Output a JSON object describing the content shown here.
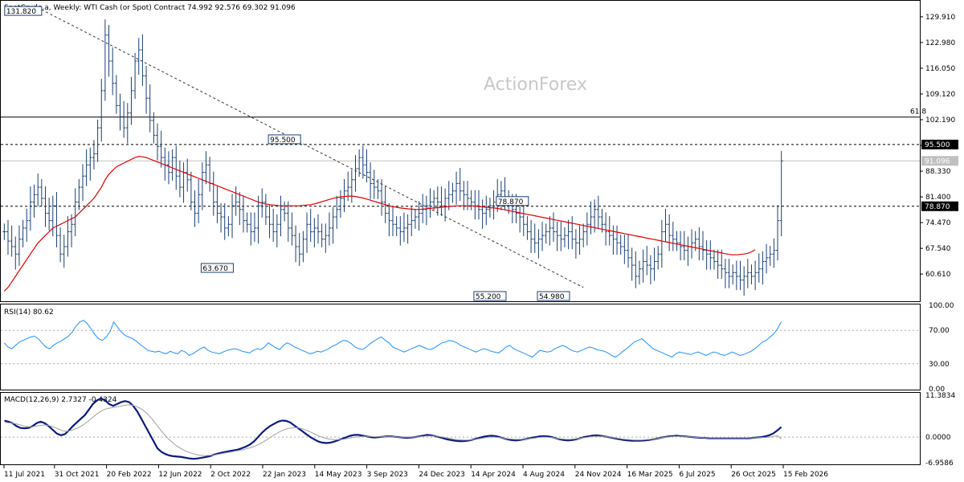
{
  "header": {
    "title": "SpotCrude.a, Weekly:  WTI Cash (or Spot) Contract  74.992 92.576 69.302 91.096",
    "watermark": "ActionForex"
  },
  "colors": {
    "candle": "#1a3f73",
    "ma": "#e00000",
    "rsi": "#1e90ff",
    "macd_main": "#0a1a80",
    "macd_signal": "#a0a0a0",
    "dash": "#333333",
    "grid": "#bdbdbd"
  },
  "chart_data": [
    {
      "type": "candlestick",
      "title": "SpotCrude.a, Weekly:  WTI Cash (or Spot) Contract  74.992 92.576 69.302 91.096",
      "ylim": [
        53.5,
        134.0
      ],
      "yticks": [
        "129.910",
        "122.980",
        "116.050",
        "109.120",
        "102.190",
        "95.260",
        "88.330",
        "81.400",
        "74.470",
        "67.540",
        "60.610"
      ],
      "xticks": [
        "11 Jul 2021",
        "31 Oct 2021",
        "20 Feb 2022",
        "12 Jun 2022",
        "2 Oct 2022",
        "22 Jan 2023",
        "14 May 2023",
        "3 Sep 2023",
        "24 Dec 2023",
        "14 Apr 2024",
        "4 Aug 2024",
        "24 Nov 2024",
        "16 Mar 2025",
        "6 Jul 2025",
        "26 Oct 2025",
        "15 Feb 2026"
      ],
      "close_series": [
        72,
        69.5,
        68,
        66,
        70,
        73,
        75,
        80,
        82,
        84,
        81,
        77,
        75,
        79,
        71,
        66,
        68,
        72,
        74,
        80,
        84,
        87,
        90,
        92,
        93,
        100,
        110,
        125,
        118,
        112,
        106,
        103,
        100,
        104,
        110,
        118,
        121,
        114,
        108,
        102,
        98,
        95,
        92,
        90,
        88,
        92,
        87,
        84,
        88,
        86,
        80,
        77,
        82,
        88,
        90,
        85,
        80,
        77,
        76,
        73,
        74,
        79,
        80,
        78,
        75,
        74,
        72,
        73,
        79,
        80,
        76,
        74,
        72,
        74,
        78,
        77,
        73,
        71,
        68,
        66,
        70,
        74,
        72,
        73,
        72,
        70,
        71,
        73,
        76,
        78,
        81,
        83,
        84,
        86,
        89,
        92,
        90,
        88,
        85,
        84,
        83,
        80,
        77,
        75,
        74,
        73,
        72,
        73,
        74,
        75,
        76,
        77,
        78,
        79,
        80,
        81,
        80,
        79,
        81,
        82,
        83,
        85,
        83,
        82,
        81,
        80,
        79,
        78,
        77,
        78,
        79,
        80,
        82,
        83,
        81,
        79,
        78,
        77,
        76,
        74,
        72,
        70,
        69,
        70,
        71,
        72,
        73,
        72,
        71,
        70,
        71,
        72,
        70,
        69,
        70,
        72,
        74,
        76,
        78,
        76,
        74,
        72,
        71,
        70,
        69,
        68,
        67,
        65,
        63,
        60,
        62,
        64,
        63,
        62,
        64,
        66,
        72,
        74,
        71,
        70,
        69,
        68,
        67,
        68,
        69,
        70,
        68,
        67,
        66,
        65,
        64,
        63,
        62,
        61,
        60,
        61,
        60,
        59,
        60,
        61,
        60,
        61,
        62,
        64,
        65,
        66,
        67,
        75,
        91.1
      ],
      "ma_series": [
        56,
        57,
        58.5,
        60,
        61.5,
        63,
        64.5,
        66,
        67.5,
        69,
        70,
        71,
        72,
        73,
        73.5,
        74,
        74.5,
        75,
        75.5,
        76,
        77,
        78,
        79,
        80,
        81,
        82.5,
        84,
        86,
        87.5,
        88.5,
        89.5,
        90,
        90.5,
        91,
        91.5,
        92,
        92.3,
        92.2,
        92,
        91.6,
        91.2,
        90.8,
        90.4,
        90,
        89.6,
        89.2,
        88.8,
        88.4,
        88,
        87.6,
        87.2,
        86.8,
        86.4,
        86,
        85.6,
        85.2,
        84.8,
        84.4,
        84,
        83.6,
        83.2,
        82.8,
        82.4,
        82,
        81.6,
        81.2,
        80.8,
        80.4,
        80,
        79.7,
        79.5,
        79.3,
        79.2,
        79.1,
        79,
        79,
        79,
        79,
        79,
        79,
        79.1,
        79.2,
        79.3,
        79.5,
        79.8,
        80.1,
        80.4,
        80.7,
        81,
        81.2,
        81.4,
        81.5,
        81.6,
        81.6,
        81.5,
        81.3,
        81.1,
        80.8,
        80.5,
        80.2,
        79.9,
        79.6,
        79.3,
        79,
        78.8,
        78.6,
        78.4,
        78.3,
        78.2,
        78.1,
        78,
        78,
        78.1,
        78.2,
        78.3,
        78.4,
        78.5,
        78.6,
        78.7,
        78.8,
        78.9,
        79,
        79,
        79,
        79,
        79,
        78.9,
        78.8,
        78.7,
        78.6,
        78.5,
        78.4,
        78.3,
        78.1,
        77.9,
        77.7,
        77.5,
        77.3,
        77.1,
        76.9,
        76.7,
        76.5,
        76.3,
        76.1,
        75.9,
        75.7,
        75.5,
        75.3,
        75.1,
        74.9,
        74.7,
        74.5,
        74.3,
        74.1,
        73.9,
        73.7,
        73.5,
        73.3,
        73.1,
        72.9,
        72.7,
        72.5,
        72.3,
        72.1,
        71.9,
        71.7,
        71.5,
        71.3,
        71.1,
        70.9,
        70.7,
        70.5,
        70.3,
        70.1,
        69.9,
        69.7,
        69.5,
        69.3,
        69.1,
        68.9,
        68.7,
        68.5,
        68.3,
        68.1,
        67.9,
        67.7,
        67.5,
        67.3,
        67.1,
        66.9,
        66.7,
        66.5,
        66.3,
        66.1,
        65.9,
        65.8,
        65.8,
        65.9,
        66,
        66.2,
        66.6,
        67.2
      ],
      "price_labels": [
        {
          "text": "95.500",
          "value": 95.5
        },
        {
          "text": "91.096",
          "value": 91.096
        },
        {
          "text": "78.870",
          "value": 78.87
        }
      ],
      "horizontal_lines": [
        {
          "value": 95.5,
          "style": "dashed"
        },
        {
          "value": 78.87,
          "style": "dashed"
        },
        {
          "value": 102.9,
          "style": "solid",
          "label": "61.8"
        },
        {
          "value": 91.096,
          "style": "solid-light"
        }
      ],
      "annotations": [
        {
          "text": "131.820",
          "value": 131.82,
          "week": 10
        },
        {
          "text": "95.500",
          "value": 95.5,
          "week": 75
        },
        {
          "text": "63.670",
          "value": 63.67,
          "week": 57
        },
        {
          "text": "78.870",
          "value": 78.87,
          "week": 136
        },
        {
          "text": "55.200",
          "value": 55.2,
          "week": 130
        },
        {
          "text": "54.980",
          "value": 54.98,
          "week": 147
        }
      ],
      "trendline": {
        "from": {
          "week": 10,
          "value": 131.82
        },
        "to": {
          "week": 155,
          "value": 57
        }
      }
    },
    {
      "type": "line",
      "title": "RSI(14) 80.62",
      "ylim": [
        0,
        100
      ],
      "yticks": [
        "100.00",
        "70.00",
        "30.00",
        "0.00"
      ],
      "levels": [
        70,
        30
      ],
      "values": [
        55,
        50,
        48,
        52,
        56,
        58,
        60,
        62,
        63,
        60,
        55,
        50,
        48,
        52,
        55,
        57,
        60,
        63,
        68,
        75,
        80,
        82,
        78,
        72,
        65,
        60,
        58,
        62,
        68,
        80,
        74,
        68,
        64,
        62,
        60,
        57,
        53,
        50,
        46,
        45,
        44,
        45,
        43,
        42,
        45,
        43,
        42,
        46,
        44,
        40,
        42,
        45,
        48,
        50,
        46,
        44,
        43,
        42,
        44,
        46,
        47,
        48,
        47,
        45,
        44,
        43,
        46,
        48,
        47,
        50,
        55,
        52,
        49,
        47,
        52,
        55,
        53,
        50,
        48,
        46,
        44,
        42,
        43,
        45,
        44,
        46,
        48,
        51,
        53,
        56,
        58,
        57,
        54,
        50,
        48,
        47,
        50,
        54,
        57,
        60,
        62,
        58,
        55,
        50,
        48,
        46,
        44,
        46,
        48,
        50,
        52,
        50,
        48,
        47,
        49,
        52,
        55,
        56,
        58,
        57,
        55,
        52,
        50,
        48,
        46,
        44,
        46,
        48,
        47,
        45,
        44,
        43,
        46,
        50,
        52,
        48,
        46,
        44,
        42,
        40,
        38,
        42,
        46,
        45,
        44,
        45,
        48,
        50,
        52,
        50,
        47,
        45,
        44,
        46,
        48,
        50,
        49,
        47,
        46,
        45,
        43,
        40,
        38,
        41,
        45,
        48,
        52,
        56,
        58,
        60,
        56,
        52,
        48,
        46,
        44,
        42,
        40,
        38,
        42,
        44,
        43,
        42,
        41,
        43,
        44,
        42,
        40,
        42,
        44,
        43,
        41,
        40,
        42,
        44,
        42,
        40,
        41,
        43,
        45,
        48,
        52,
        56,
        58,
        62,
        66,
        72,
        80.62
      ]
    },
    {
      "type": "line",
      "title": "MACD(12,26,9) 2.7327 -0.4324",
      "ylim": [
        -6.9586,
        11.3834
      ],
      "yticks": [
        "11.3834",
        "0.0000",
        "-6.9586"
      ],
      "levels": [
        0
      ],
      "series": [
        {
          "name": "MACD",
          "values": [
            4.5,
            4.2,
            3.8,
            3.0,
            2.5,
            2.4,
            2.5,
            3.0,
            3.8,
            4.2,
            3.8,
            3.0,
            2.0,
            1.0,
            0.5,
            0.8,
            1.8,
            3.0,
            4.0,
            5.0,
            6.0,
            7.5,
            9.0,
            10.0,
            10.5,
            10.0,
            9.0,
            8.5,
            9.0,
            9.5,
            9.8,
            9.5,
            8.5,
            7.0,
            5.0,
            3.0,
            1.0,
            -1.0,
            -3.0,
            -4.0,
            -4.6,
            -5.0,
            -5.2,
            -5.3,
            -5.4,
            -5.6,
            -5.8,
            -5.9,
            -5.8,
            -5.6,
            -5.4,
            -5.2,
            -4.8,
            -4.5,
            -4.2,
            -4.0,
            -3.8,
            -3.6,
            -3.4,
            -3.0,
            -2.6,
            -2.0,
            -1.2,
            0.0,
            1.2,
            2.2,
            3.0,
            3.6,
            4.2,
            4.5,
            4.4,
            4.0,
            3.2,
            2.4,
            1.6,
            0.8,
            0.0,
            -0.6,
            -1.2,
            -1.5,
            -1.6,
            -1.5,
            -1.2,
            -0.8,
            -0.4,
            0.0,
            0.4,
            0.6,
            0.6,
            0.4,
            0.2,
            0.0,
            -0.1,
            0.0,
            0.1,
            0.2,
            0.2,
            0.1,
            0.0,
            -0.1,
            -0.2,
            -0.1,
            0.0,
            0.2,
            0.4,
            0.6,
            0.5,
            0.3,
            0.0,
            -0.3,
            -0.6,
            -0.8,
            -1.0,
            -1.1,
            -1.1,
            -1.0,
            -0.8,
            -0.5,
            -0.2,
            0.1,
            0.3,
            0.4,
            0.3,
            0.0,
            -0.3,
            -0.6,
            -0.8,
            -0.9,
            -0.8,
            -0.6,
            -0.4,
            -0.2,
            0.0,
            0.2,
            0.3,
            0.2,
            0.0,
            -0.3,
            -0.6,
            -0.8,
            -0.9,
            -0.8,
            -0.6,
            -0.3,
            0.0,
            0.2,
            0.4,
            0.5,
            0.4,
            0.2,
            0.0,
            -0.2,
            -0.4,
            -0.6,
            -0.8,
            -0.9,
            -1.0,
            -1.0,
            -1.0,
            -0.9,
            -0.8,
            -0.6,
            -0.4,
            -0.2,
            0.0,
            0.2,
            0.3,
            0.4,
            0.3,
            0.2,
            0.1,
            0.0,
            -0.1,
            -0.2,
            -0.2,
            -0.3,
            -0.3,
            -0.3,
            -0.3,
            -0.3,
            -0.3,
            -0.3,
            -0.3,
            -0.3,
            -0.3,
            -0.3,
            -0.2,
            -0.1,
            0.0,
            0.2,
            0.5,
            1.0,
            1.8,
            2.7327
          ]
        },
        {
          "name": "Signal",
          "values": [
            4.0,
            3.9,
            3.8,
            3.6,
            3.3,
            3.0,
            2.8,
            2.8,
            3.0,
            3.2,
            3.3,
            3.2,
            2.9,
            2.5,
            2.0,
            1.6,
            1.6,
            1.9,
            2.3,
            2.8,
            3.5,
            4.3,
            5.2,
            6.1,
            6.9,
            7.5,
            7.8,
            8.0,
            8.2,
            8.4,
            8.6,
            8.8,
            8.7,
            8.4,
            7.9,
            7.2,
            6.2,
            5.0,
            3.6,
            2.2,
            0.9,
            -0.3,
            -1.3,
            -2.2,
            -2.9,
            -3.5,
            -4.0,
            -4.4,
            -4.7,
            -4.9,
            -5.0,
            -5.0,
            -4.9,
            -4.8,
            -4.6,
            -4.4,
            -4.2,
            -4.0,
            -3.8,
            -3.6,
            -3.4,
            -3.1,
            -2.8,
            -2.4,
            -1.9,
            -1.3,
            -0.6,
            0.1,
            0.8,
            1.4,
            1.9,
            2.3,
            2.5,
            2.6,
            2.5,
            2.2,
            1.8,
            1.3,
            0.8,
            0.3,
            -0.1,
            -0.4,
            -0.6,
            -0.7,
            -0.7,
            -0.6,
            -0.4,
            -0.2,
            0.0,
            0.1,
            0.2,
            0.2,
            0.2,
            0.1,
            0.1,
            0.1,
            0.1,
            0.1,
            0.1,
            0.0,
            0.0,
            0.0,
            0.0,
            0.0,
            0.1,
            0.2,
            0.3,
            0.3,
            0.3,
            0.2,
            0.0,
            -0.2,
            -0.4,
            -0.6,
            -0.7,
            -0.8,
            -0.8,
            -0.8,
            -0.7,
            -0.5,
            -0.3,
            -0.1,
            0.0,
            0.0,
            -0.1,
            -0.2,
            -0.4,
            -0.5,
            -0.6,
            -0.6,
            -0.6,
            -0.5,
            -0.4,
            -0.3,
            -0.1,
            0.0,
            0.0,
            -0.1,
            -0.2,
            -0.4,
            -0.5,
            -0.6,
            -0.6,
            -0.5,
            -0.4,
            -0.2,
            -0.1,
            0.1,
            0.2,
            0.2,
            0.2,
            0.1,
            0.0,
            -0.2,
            -0.3,
            -0.5,
            -0.6,
            -0.7,
            -0.8,
            -0.8,
            -0.8,
            -0.7,
            -0.6,
            -0.5,
            -0.3,
            -0.2,
            0.0,
            0.1,
            0.2,
            0.2,
            0.2,
            0.1,
            0.1,
            0.0,
            -0.1,
            -0.1,
            -0.2,
            -0.2,
            -0.2,
            -0.2,
            -0.2,
            -0.2,
            -0.2,
            -0.2,
            -0.2,
            -0.2,
            -0.2,
            -0.2,
            -0.2,
            -0.2,
            -0.1,
            -0.1,
            0.0,
            0.2,
            0.4,
            -0.4324
          ]
        }
      ]
    }
  ]
}
